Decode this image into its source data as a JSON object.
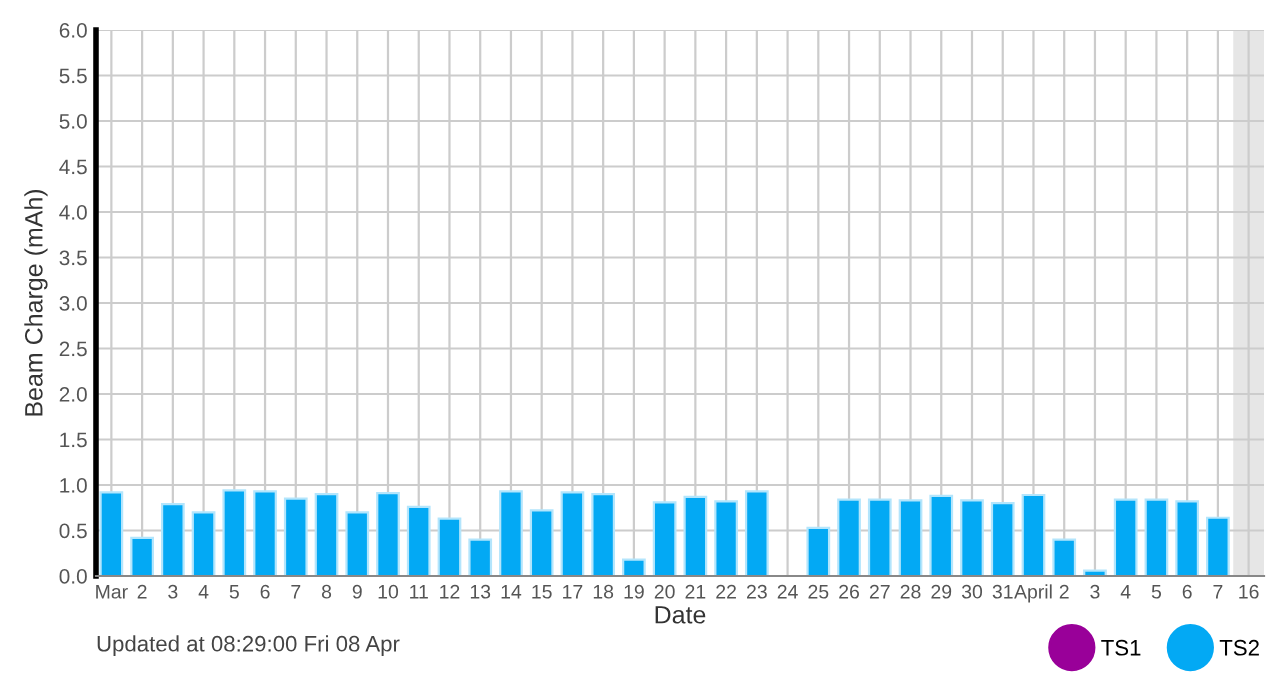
{
  "chart_data": {
    "type": "bar",
    "xlabel": "Date",
    "ylabel": "Beam Charge (mAh)",
    "categories": [
      "Mar",
      "2",
      "3",
      "4",
      "5",
      "6",
      "7",
      "8",
      "9",
      "10",
      "11",
      "12",
      "13",
      "14",
      "15",
      "17",
      "18",
      "19",
      "20",
      "21",
      "22",
      "23",
      "24",
      "25",
      "26",
      "27",
      "28",
      "29",
      "30",
      "31",
      "April",
      "2",
      "3",
      "4",
      "5",
      "6",
      "7",
      "16"
    ],
    "series": [
      {
        "name": "TS1",
        "color": "#990099",
        "values": [
          null,
          null,
          null,
          null,
          null,
          null,
          null,
          null,
          null,
          null,
          null,
          null,
          null,
          null,
          null,
          null,
          null,
          null,
          null,
          null,
          null,
          null,
          null,
          null,
          null,
          null,
          null,
          null,
          null,
          null,
          null,
          null,
          null,
          null,
          null,
          null,
          null,
          null
        ]
      },
      {
        "name": "TS2",
        "color": "#03a9f4",
        "values": [
          0.92,
          0.42,
          0.79,
          0.7,
          0.94,
          0.93,
          0.85,
          0.9,
          0.7,
          0.91,
          0.76,
          0.63,
          0.4,
          0.93,
          0.72,
          0.92,
          0.9,
          0.18,
          0.81,
          0.87,
          0.82,
          0.93,
          null,
          0.53,
          0.84,
          0.84,
          0.83,
          0.88,
          0.83,
          0.8,
          0.89,
          0.4,
          0.06,
          0.84,
          0.84,
          0.82,
          0.64,
          null
        ]
      }
    ],
    "ylim": [
      0,
      6
    ],
    "yticks": [
      {
        "value": 0,
        "label": "0.0"
      },
      {
        "value": 0.5,
        "label": "0.5"
      },
      {
        "value": 1,
        "label": "1.0"
      },
      {
        "value": 1.5,
        "label": "1.5"
      },
      {
        "value": 2,
        "label": "2.0"
      },
      {
        "value": 2.5,
        "label": "2.5"
      },
      {
        "value": 3,
        "label": "3.0"
      },
      {
        "value": 3.5,
        "label": "3.5"
      },
      {
        "value": 4,
        "label": "4.0"
      },
      {
        "value": 4.5,
        "label": "4.5"
      },
      {
        "value": 5,
        "label": "5.0"
      },
      {
        "value": 5.5,
        "label": "5.5"
      },
      {
        "value": 6,
        "label": "6.0"
      }
    ],
    "bands": [
      {
        "axis": "x",
        "from": "16",
        "to": "16",
        "color": "#e6e6e6"
      }
    ],
    "grid": true,
    "legend": "bottom right",
    "annotations": [
      "Updated at 08:29:00 Fri 08 Apr"
    ]
  }
}
